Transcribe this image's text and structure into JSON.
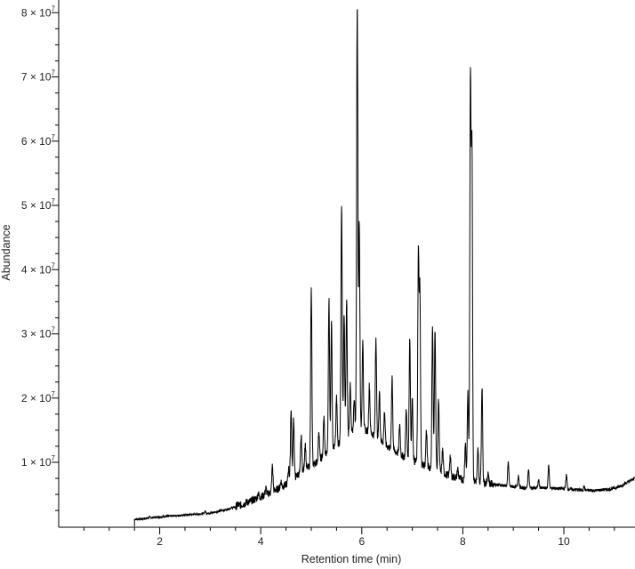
{
  "chart_data": {
    "type": "line",
    "title": "",
    "xlabel": "Retention time (min)",
    "ylabel": "Abundance",
    "xlim": [
      0,
      11.4
    ],
    "ylim": [
      1000000,
      83000000
    ],
    "x_ticks": [
      2,
      4,
      6,
      8,
      10
    ],
    "y_ticks": [
      {
        "value": 10000000,
        "mantissa": "1",
        "base": "× 10",
        "exp": "7"
      },
      {
        "value": 20000000,
        "mantissa": "2",
        "base": "× 10",
        "exp": "7"
      },
      {
        "value": 30000000,
        "mantissa": "3",
        "base": "× 10",
        "exp": "7"
      },
      {
        "value": 40000000,
        "mantissa": "4",
        "base": "× 10",
        "exp": "7"
      },
      {
        "value": 50000000,
        "mantissa": "5",
        "base": "× 10",
        "exp": "7"
      },
      {
        "value": 60000000,
        "mantissa": "6",
        "base": "× 10",
        "exp": "7"
      },
      {
        "value": 70000000,
        "mantissa": "7",
        "base": "× 10",
        "exp": "7"
      },
      {
        "value": 80000000,
        "mantissa": "8",
        "base": "× 10",
        "exp": "7"
      }
    ],
    "grid": false,
    "legend": "none",
    "series": [
      {
        "color": "#000000",
        "baseline": [
          [
            1.5,
            1100000
          ],
          [
            2.0,
            1500000
          ],
          [
            2.5,
            1800000
          ],
          [
            3.0,
            2100000
          ],
          [
            3.3,
            2600000
          ],
          [
            3.6,
            3300000
          ],
          [
            3.9,
            4300000
          ],
          [
            4.2,
            5300000
          ],
          [
            4.5,
            6500000
          ],
          [
            4.8,
            8500000
          ],
          [
            5.1,
            10000000
          ],
          [
            5.4,
            12000000
          ],
          [
            5.7,
            14000000
          ],
          [
            5.95,
            15500000
          ],
          [
            6.2,
            14500000
          ],
          [
            6.5,
            12500000
          ],
          [
            6.8,
            11000000
          ],
          [
            7.1,
            10000000
          ],
          [
            7.4,
            9000000
          ],
          [
            7.7,
            8000000
          ],
          [
            8.0,
            7300000
          ],
          [
            8.3,
            7000000
          ],
          [
            8.6,
            6600000
          ],
          [
            8.9,
            6300000
          ],
          [
            9.2,
            6000000
          ],
          [
            9.6,
            6000000
          ],
          [
            10.0,
            5900000
          ],
          [
            10.3,
            5700000
          ],
          [
            10.6,
            5600000
          ],
          [
            10.9,
            5800000
          ],
          [
            11.1,
            6200000
          ],
          [
            11.4,
            7500000
          ]
        ],
        "peaks": [
          [
            1.8,
            1500000
          ],
          [
            2.1,
            1600000
          ],
          [
            2.45,
            1800000
          ],
          [
            2.9,
            2400000
          ],
          [
            3.55,
            3500000
          ],
          [
            3.72,
            3800000
          ],
          [
            3.95,
            5200000
          ],
          [
            4.1,
            6000000
          ],
          [
            4.23,
            9500000
          ],
          [
            4.4,
            7000000
          ],
          [
            4.55,
            9000000
          ],
          [
            4.6,
            18500000
          ],
          [
            4.65,
            17000000
          ],
          [
            4.8,
            14000000
          ],
          [
            4.88,
            13000000
          ],
          [
            5.0,
            37000000
          ],
          [
            5.15,
            15000000
          ],
          [
            5.25,
            17000000
          ],
          [
            5.35,
            35500000
          ],
          [
            5.4,
            32000000
          ],
          [
            5.5,
            20000000
          ],
          [
            5.6,
            50500000
          ],
          [
            5.65,
            33000000
          ],
          [
            5.7,
            35000000
          ],
          [
            5.77,
            22000000
          ],
          [
            5.85,
            20000000
          ],
          [
            5.91,
            81500000
          ],
          [
            5.95,
            47000000
          ],
          [
            6.02,
            29000000
          ],
          [
            6.15,
            22000000
          ],
          [
            6.28,
            29500000
          ],
          [
            6.35,
            21000000
          ],
          [
            6.45,
            18000000
          ],
          [
            6.6,
            23500000
          ],
          [
            6.75,
            16000000
          ],
          [
            6.88,
            18500000
          ],
          [
            6.95,
            29500000
          ],
          [
            7.0,
            20000000
          ],
          [
            7.12,
            42500000
          ],
          [
            7.15,
            36500000
          ],
          [
            7.28,
            15000000
          ],
          [
            7.4,
            31500000
          ],
          [
            7.45,
            31000000
          ],
          [
            7.52,
            20000000
          ],
          [
            7.6,
            12000000
          ],
          [
            7.75,
            11000000
          ],
          [
            7.9,
            9000000
          ],
          [
            8.05,
            13000000
          ],
          [
            8.1,
            21000000
          ],
          [
            8.15,
            69500000
          ],
          [
            8.18,
            59000000
          ],
          [
            8.3,
            12000000
          ],
          [
            8.38,
            22000000
          ],
          [
            8.5,
            8500000
          ],
          [
            8.9,
            10000000
          ],
          [
            9.1,
            8000000
          ],
          [
            9.3,
            9000000
          ],
          [
            9.5,
            7200000
          ],
          [
            9.7,
            9500000
          ],
          [
            10.05,
            8000000
          ],
          [
            10.4,
            6200000
          ]
        ]
      }
    ]
  }
}
